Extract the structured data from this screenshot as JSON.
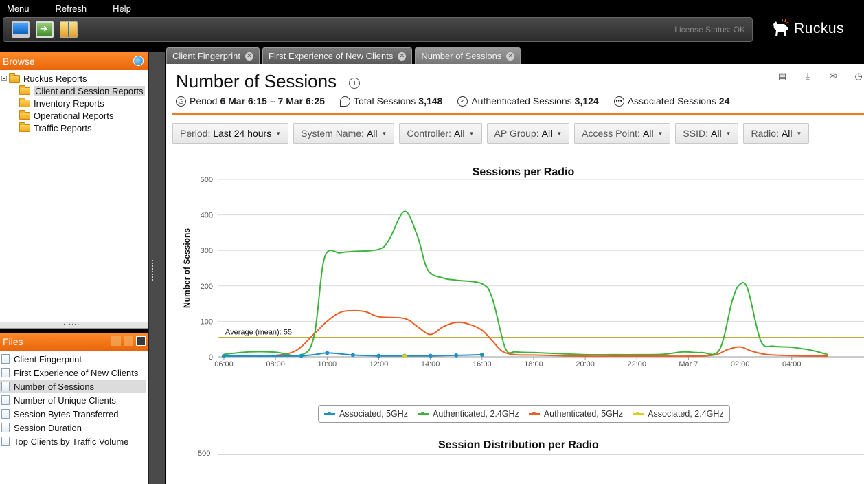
{
  "menubar": {
    "items": [
      "Menu",
      "Refresh",
      "Help"
    ]
  },
  "toolbar": {
    "icons": [
      "monitor-icon",
      "export-icon",
      "calendar-icon"
    ],
    "license_status": "License Status: OK"
  },
  "logo": {
    "text": "Ruckus"
  },
  "browse": {
    "title": "Browse",
    "root": "Ruckus Reports",
    "folders": [
      "Client and Session Reports",
      "Inventory Reports",
      "Operational Reports",
      "Traffic Reports"
    ],
    "selected": "Client and Session Reports"
  },
  "files": {
    "title": "Files",
    "items": [
      "Client Fingerprint",
      "First Experience of New Clients",
      "Number of Sessions",
      "Number of Unique Clients",
      "Session Bytes Transferred",
      "Session Duration",
      "Top Clients by Traffic Volume"
    ],
    "active": "Number of Sessions"
  },
  "tabs": [
    {
      "label": "Client Fingerprint",
      "active": false
    },
    {
      "label": "First Experience of New Clients",
      "active": false
    },
    {
      "label": "Number of Sessions",
      "active": true
    }
  ],
  "page": {
    "title": "Number of Sessions",
    "period_label": "Period",
    "period_value": "6 Mar 6:15 – 7 Mar 6:25",
    "total_label": "Total Sessions",
    "total_value": "3,148",
    "auth_label": "Authenticated Sessions",
    "auth_value": "3,124",
    "assoc_label": "Associated Sessions",
    "assoc_value": "24"
  },
  "filters": [
    {
      "label": "Period:",
      "value": "Last 24 hours"
    },
    {
      "label": "System Name:",
      "value": "All"
    },
    {
      "label": "Controller:",
      "value": "All"
    },
    {
      "label": "AP Group:",
      "value": "All"
    },
    {
      "label": "Access Point:",
      "value": "All"
    },
    {
      "label": "SSID:",
      "value": "All"
    },
    {
      "label": "Radio:",
      "value": "All"
    }
  ],
  "chart_data": [
    {
      "type": "line",
      "title": "Sessions per Radio",
      "xlabel": "",
      "ylabel": "Number of Sessions",
      "ylim": [
        0,
        500
      ],
      "yticks": [
        0,
        100,
        200,
        300,
        400,
        500
      ],
      "xlim": [
        6,
        30.8
      ],
      "xticks": [
        {
          "x": 6,
          "label": "06:00"
        },
        {
          "x": 8,
          "label": "08:00"
        },
        {
          "x": 10,
          "label": "10:00"
        },
        {
          "x": 12,
          "label": "12:00"
        },
        {
          "x": 14,
          "label": "14:00"
        },
        {
          "x": 16,
          "label": "16:00"
        },
        {
          "x": 18,
          "label": "18:00"
        },
        {
          "x": 20,
          "label": "20:00"
        },
        {
          "x": 22,
          "label": "22:00"
        },
        {
          "x": 24,
          "label": "Mar 7"
        },
        {
          "x": 26,
          "label": "02:00"
        },
        {
          "x": 28,
          "label": "04:00"
        }
      ],
      "average": {
        "label": "Average (mean): 55",
        "value": 55,
        "color": "#b8a018"
      },
      "legend_position": "bottom",
      "series": [
        {
          "name": "Associated, 5GHz",
          "color": "#1f8fc8",
          "markers": true,
          "points": [
            [
              6,
              2
            ],
            [
              9,
              3
            ],
            [
              10,
              11
            ],
            [
              11,
              5
            ],
            [
              12,
              3
            ],
            [
              13,
              3
            ],
            [
              14,
              3
            ],
            [
              15,
              4
            ],
            [
              16,
              6
            ]
          ]
        },
        {
          "name": "Authenticated, 2.4GHz",
          "color": "#3cb43c",
          "markers": false,
          "points": [
            [
              6,
              7
            ],
            [
              7,
              14
            ],
            [
              8,
              13
            ],
            [
              9,
              5
            ],
            [
              9.5,
              60
            ],
            [
              9.9,
              280
            ],
            [
              10.5,
              293
            ],
            [
              11,
              297
            ],
            [
              12,
              303
            ],
            [
              12.4,
              330
            ],
            [
              13,
              410
            ],
            [
              13.5,
              340
            ],
            [
              13.9,
              245
            ],
            [
              14.5,
              222
            ],
            [
              15,
              216
            ],
            [
              16,
              206
            ],
            [
              16.4,
              165
            ],
            [
              16.9,
              25
            ],
            [
              17.3,
              14
            ],
            [
              18,
              12
            ],
            [
              19,
              9
            ],
            [
              20,
              6
            ],
            [
              21,
              6
            ],
            [
              22,
              6
            ],
            [
              23,
              7
            ],
            [
              23.8,
              14
            ],
            [
              24.5,
              12
            ],
            [
              25.2,
              20
            ],
            [
              25.7,
              160
            ],
            [
              26,
              205
            ],
            [
              26.3,
              190
            ],
            [
              26.8,
              45
            ],
            [
              27.3,
              30
            ],
            [
              28,
              27
            ],
            [
              28.8,
              18
            ],
            [
              29.4,
              6
            ]
          ]
        },
        {
          "name": "Authenticated, 5GHz",
          "color": "#ec5f24",
          "markers": false,
          "points": [
            [
              6,
              2
            ],
            [
              7,
              2
            ],
            [
              8,
              4
            ],
            [
              8.8,
              18
            ],
            [
              9.5,
              65
            ],
            [
              10,
              100
            ],
            [
              10.5,
              125
            ],
            [
              11,
              130
            ],
            [
              11.5,
              127
            ],
            [
              12,
              113
            ],
            [
              13,
              108
            ],
            [
              13.5,
              85
            ],
            [
              14,
              63
            ],
            [
              14.5,
              85
            ],
            [
              15,
              97
            ],
            [
              15.5,
              92
            ],
            [
              16,
              75
            ],
            [
              16.4,
              45
            ],
            [
              16.8,
              15
            ],
            [
              17.3,
              6
            ],
            [
              18,
              5
            ],
            [
              20,
              2
            ],
            [
              22,
              2
            ],
            [
              24,
              2
            ],
            [
              25,
              5
            ],
            [
              25.5,
              20
            ],
            [
              26,
              28
            ],
            [
              26.5,
              15
            ],
            [
              27.3,
              5
            ],
            [
              29.4,
              2
            ]
          ]
        },
        {
          "name": "Associated, 2.4GHz",
          "color": "#d8d020",
          "markers": true,
          "points": [
            [
              13,
              2
            ]
          ]
        }
      ]
    },
    {
      "type": "bar",
      "title": "Session Distribution per Radio",
      "yticks": [
        500
      ]
    }
  ]
}
